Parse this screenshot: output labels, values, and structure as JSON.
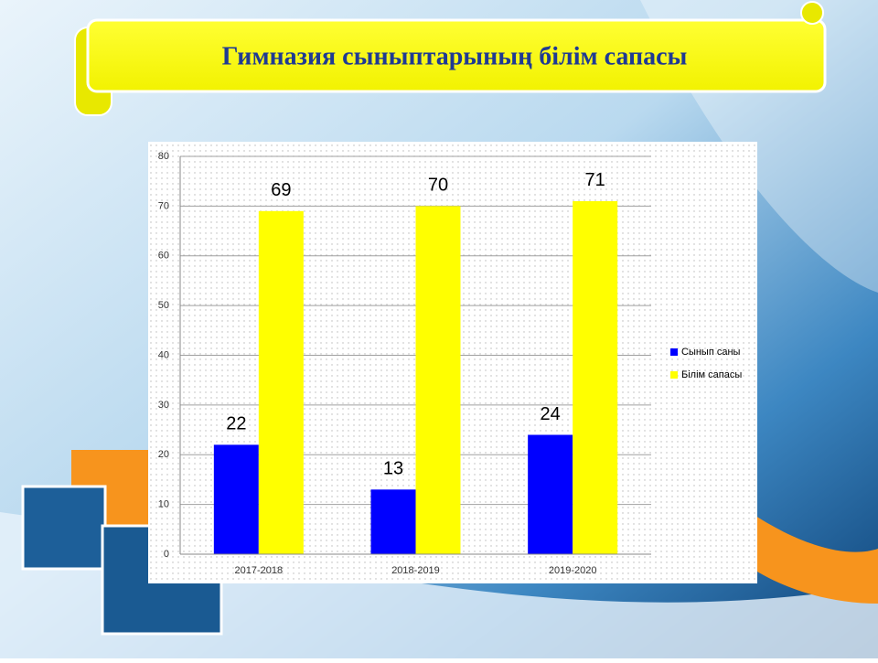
{
  "chart_data": {
    "type": "bar",
    "title": "Гимназия сыныптарының білім сапасы",
    "categories": [
      "2017-2018",
      "2018-2019",
      "2019-2020"
    ],
    "series": [
      {
        "name": "Сынып саны",
        "color": "#0000ff",
        "values": [
          22,
          13,
          24
        ]
      },
      {
        "name": "Білім сапасы",
        "color": "#ffff00",
        "values": [
          69,
          70,
          71
        ]
      }
    ],
    "ylim": [
      0,
      80
    ],
    "yticks": [
      0,
      10,
      20,
      30,
      40,
      50,
      60,
      70,
      80
    ],
    "grid": true,
    "legend": "right"
  }
}
